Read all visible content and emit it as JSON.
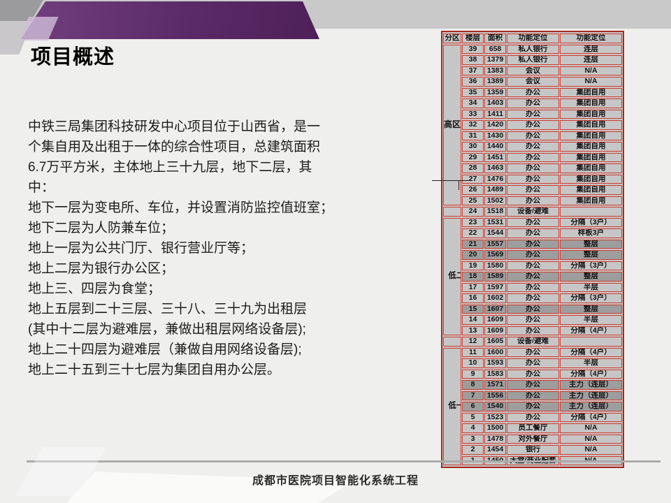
{
  "slide": {
    "title": "项目概述",
    "footer": "成都市医院项目智能化系统工程"
  },
  "body": {
    "lines": [
      "中铁三局集团科技研发中心项目位于山西省，是一",
      "个集自用及出租于一体的综合性项目，总建筑面积",
      "6.7万平方米，主体地上三十九层，地下二层，其",
      "中：",
      "地下一层为变电所、车位，并设置消防监控值班室；",
      "地下二层为人防兼车位；",
      "地上一层为公共门厅、银行营业厅等；",
      "地上二层为银行办公区；",
      "地上三、四层为食堂；",
      "地上五层到二十三层、三十八、三十九为出租层",
      "(其中十二层为避难层，兼做出租层网络设备层);",
      "地上二十四层为避难层（兼做自用网络设备层);",
      "地上二十五到三十七层为集团自用办公层。"
    ]
  },
  "table": {
    "headers": [
      "分区",
      "楼层",
      "面积",
      "功能定位",
      "功能定位"
    ],
    "zones": [
      {
        "label": "高区",
        "span": 15,
        "vertical": false
      },
      {
        "label": "",
        "span": 1,
        "vertical": false
      },
      {
        "label": "低二区",
        "span": 11,
        "vertical": true
      },
      {
        "label": "",
        "span": 1,
        "vertical": false
      },
      {
        "label": "低一区",
        "span": 11,
        "vertical": true
      }
    ],
    "rows": [
      {
        "floor": "39",
        "area": "658",
        "func": "私人银行",
        "layout": "连层",
        "shaded": false
      },
      {
        "floor": "38",
        "area": "1379",
        "func": "私人银行",
        "layout": "连层",
        "shaded": false
      },
      {
        "floor": "37",
        "area": "1383",
        "func": "会议",
        "layout": "N/A",
        "shaded": false
      },
      {
        "floor": "36",
        "area": "1389",
        "func": "会议",
        "layout": "N/A",
        "shaded": false
      },
      {
        "floor": "35",
        "area": "1359",
        "func": "办公",
        "layout": "集团自用",
        "shaded": false
      },
      {
        "floor": "34",
        "area": "1403",
        "func": "办公",
        "layout": "集团自用",
        "shaded": false
      },
      {
        "floor": "33",
        "area": "1411",
        "func": "办公",
        "layout": "集团自用",
        "shaded": false
      },
      {
        "floor": "32",
        "area": "1420",
        "func": "办公",
        "layout": "集团自用",
        "shaded": false
      },
      {
        "floor": "31",
        "area": "1430",
        "func": "办公",
        "layout": "集团自用",
        "shaded": false
      },
      {
        "floor": "30",
        "area": "1440",
        "func": "办公",
        "layout": "集团自用",
        "shaded": false
      },
      {
        "floor": "29",
        "area": "1451",
        "func": "办公",
        "layout": "集团自用",
        "shaded": false
      },
      {
        "floor": "28",
        "area": "1463",
        "func": "办公",
        "layout": "集团自用",
        "shaded": false
      },
      {
        "floor": "27",
        "area": "1476",
        "func": "办公",
        "layout": "集团自用",
        "shaded": false
      },
      {
        "floor": "26",
        "area": "1489",
        "func": "办公",
        "layout": "集团自用",
        "shaded": false
      },
      {
        "floor": "25",
        "area": "1502",
        "func": "办公",
        "layout": "集团自用",
        "shaded": false
      },
      {
        "floor": "24",
        "area": "1518",
        "func": "设备/避难",
        "layout": "",
        "shaded": false
      },
      {
        "floor": "23",
        "area": "1531",
        "func": "办公",
        "layout": "分隔（3户）",
        "shaded": false
      },
      {
        "floor": "22",
        "area": "1544",
        "func": "办公",
        "layout": "样板3户",
        "shaded": false
      },
      {
        "floor": "21",
        "area": "1557",
        "func": "办公",
        "layout": "整层",
        "shaded": true
      },
      {
        "floor": "20",
        "area": "1569",
        "func": "办公",
        "layout": "整层",
        "shaded": true
      },
      {
        "floor": "19",
        "area": "1580",
        "func": "办公",
        "layout": "分隔（3户）",
        "shaded": false
      },
      {
        "floor": "18",
        "area": "1589",
        "func": "办公",
        "layout": "整层",
        "shaded": true
      },
      {
        "floor": "17",
        "area": "1597",
        "func": "办公",
        "layout": "半层",
        "shaded": false
      },
      {
        "floor": "16",
        "area": "1602",
        "func": "办公",
        "layout": "分隔（3户）",
        "shaded": false
      },
      {
        "floor": "15",
        "area": "1607",
        "func": "办公",
        "layout": "整层",
        "shaded": true
      },
      {
        "floor": "14",
        "area": "1609",
        "func": "办公",
        "layout": "半层",
        "shaded": false
      },
      {
        "floor": "13",
        "area": "1609",
        "func": "办公",
        "layout": "分隔（4户）",
        "shaded": false
      },
      {
        "floor": "12",
        "area": "1605",
        "func": "设备/避难",
        "layout": "",
        "shaded": false
      },
      {
        "floor": "11",
        "area": "1600",
        "func": "办公",
        "layout": "分隔（4户）",
        "shaded": false
      },
      {
        "floor": "10",
        "area": "1593",
        "func": "办公",
        "layout": "半层",
        "shaded": false
      },
      {
        "floor": "9",
        "area": "1583",
        "func": "办公",
        "layout": "分隔（4户）",
        "shaded": false
      },
      {
        "floor": "8",
        "area": "1571",
        "func": "办公",
        "layout": "主力（连层）",
        "shaded": true
      },
      {
        "floor": "7",
        "area": "1556",
        "func": "办公",
        "layout": "主力（连层）",
        "shaded": true
      },
      {
        "floor": "6",
        "area": "1540",
        "func": "办公",
        "layout": "主力（连层）",
        "shaded": true
      },
      {
        "floor": "5",
        "area": "1523",
        "func": "办公",
        "layout": "分隔（4户）",
        "shaded": false
      },
      {
        "floor": "4",
        "area": "1500",
        "func": "员工餐厅",
        "layout": "N/A",
        "shaded": false
      },
      {
        "floor": "3",
        "area": "1478",
        "func": "对外餐厅",
        "layout": "N/A",
        "shaded": false
      },
      {
        "floor": "2",
        "area": "1454",
        "func": "银行",
        "layout": "N/A",
        "shaded": false
      },
      {
        "floor": "1",
        "area": "1450",
        "func": "大堂/商业配套",
        "layout": "N/A",
        "shaded": false
      }
    ]
  },
  "colors": {
    "banner_purple": "#5b2a68",
    "banner_highlight": "#d0bed8",
    "table_border_red": "#d23c30",
    "table_cell_gray": "#c6c6c6",
    "table_shaded_gray": "#9d9d9d",
    "band_gray": "#c9c9c9",
    "background": "#efefee"
  }
}
